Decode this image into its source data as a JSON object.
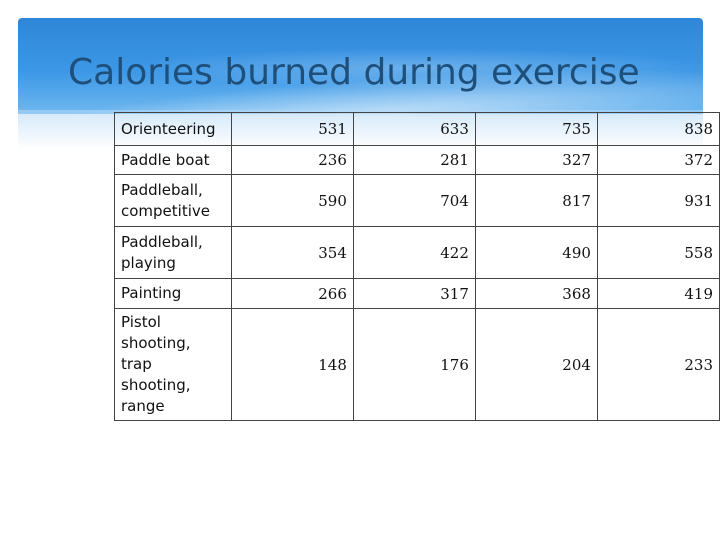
{
  "slide": {
    "title": "Calories burned during exercise"
  },
  "table": {
    "rows": [
      {
        "activity": "Orienteering",
        "values": [
          "531",
          "633",
          "735",
          "838"
        ]
      },
      {
        "activity": "Paddle boat",
        "values": [
          "236",
          "281",
          "327",
          "372"
        ]
      },
      {
        "activity": "Paddleball, competitive",
        "values": [
          "590",
          "704",
          "817",
          "931"
        ]
      },
      {
        "activity": "Paddleball, playing",
        "values": [
          "354",
          "422",
          "490",
          "558"
        ]
      },
      {
        "activity": "Painting",
        "values": [
          "266",
          "317",
          "368",
          "419"
        ]
      },
      {
        "activity": "Pistol shooting, trap shooting, range",
        "values": [
          "148",
          "176",
          "204",
          "233"
        ]
      }
    ]
  }
}
